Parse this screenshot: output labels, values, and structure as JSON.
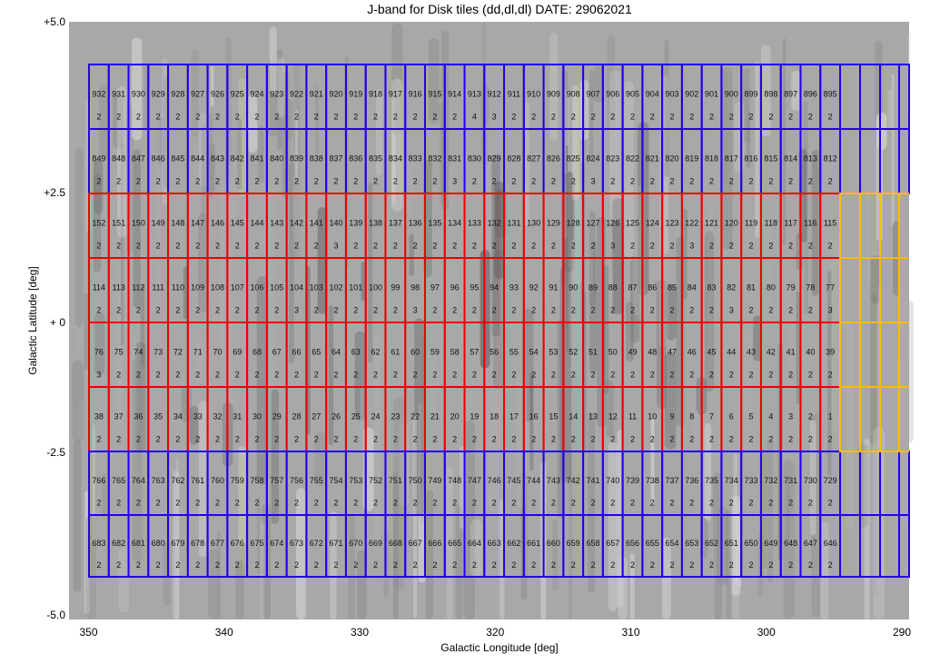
{
  "chart_data": {
    "type": "table",
    "title": "J-band for Disk tiles (dd,dl,dl) DATE: 29062021",
    "xlabel": "Galactic Longitude [deg]",
    "ylabel": "Galactic Latitude [deg]",
    "xticks": [
      "350",
      "340",
      "330",
      "320",
      "310",
      "300",
      "290"
    ],
    "yticks": [
      "+5.0",
      "+2.5",
      "+ 0",
      "-2.5",
      "-5.0"
    ],
    "xlim": [
      351.5,
      289.5
    ],
    "ylim": [
      -5.0,
      5.0
    ],
    "colors": {
      "blue_tiles": "#2200ee",
      "red_tiles": "#ee0000",
      "yellow_tiles": "#ffbb00",
      "background": "#a8a8a8"
    },
    "rows": [
      {
        "group": "blue",
        "ids": [
          932,
          931,
          930,
          929,
          928,
          927,
          926,
          925,
          924,
          923,
          922,
          921,
          920,
          919,
          918,
          917,
          916,
          915,
          914,
          913,
          912,
          911,
          910,
          909,
          908,
          907,
          906,
          905,
          904,
          903,
          902,
          901,
          900,
          899,
          898,
          897,
          896,
          895
        ],
        "counts": [
          2,
          2,
          2,
          2,
          2,
          2,
          2,
          2,
          2,
          2,
          2,
          2,
          2,
          2,
          2,
          2,
          2,
          2,
          2,
          4,
          3,
          2,
          2,
          2,
          2,
          2,
          2,
          2,
          2,
          2,
          2,
          2,
          2,
          2,
          2,
          2,
          2,
          2
        ]
      },
      {
        "group": "blue",
        "ids": [
          849,
          848,
          847,
          846,
          845,
          844,
          843,
          842,
          841,
          840,
          839,
          838,
          837,
          836,
          835,
          834,
          833,
          832,
          831,
          830,
          829,
          828,
          827,
          826,
          825,
          824,
          823,
          822,
          821,
          820,
          819,
          818,
          817,
          816,
          815,
          814,
          813,
          812
        ],
        "counts": [
          2,
          2,
          2,
          2,
          2,
          2,
          2,
          2,
          2,
          2,
          2,
          2,
          2,
          2,
          2,
          2,
          2,
          2,
          3,
          2,
          2,
          2,
          2,
          2,
          2,
          3,
          2,
          2,
          2,
          2,
          2,
          2,
          2,
          2,
          2,
          2,
          2,
          2
        ]
      },
      {
        "group": "red",
        "ids": [
          152,
          151,
          150,
          149,
          148,
          147,
          146,
          145,
          144,
          143,
          142,
          141,
          140,
          139,
          138,
          137,
          136,
          135,
          134,
          133,
          132,
          131,
          130,
          129,
          128,
          127,
          126,
          125,
          124,
          123,
          122,
          121,
          120,
          119,
          118,
          117,
          116,
          115
        ],
        "counts": [
          2,
          2,
          2,
          2,
          2,
          2,
          2,
          2,
          2,
          2,
          2,
          2,
          3,
          2,
          2,
          2,
          2,
          2,
          2,
          2,
          2,
          2,
          2,
          2,
          2,
          2,
          3,
          2,
          2,
          2,
          3,
          2,
          2,
          2,
          2,
          2,
          2,
          2
        ]
      },
      {
        "group": "red",
        "ids": [
          114,
          113,
          112,
          111,
          110,
          109,
          108,
          107,
          106,
          105,
          104,
          103,
          102,
          101,
          100,
          99,
          98,
          97,
          96,
          95,
          94,
          93,
          92,
          91,
          90,
          89,
          88,
          87,
          86,
          85,
          84,
          83,
          82,
          81,
          80,
          79,
          78,
          77
        ],
        "counts": [
          2,
          2,
          2,
          2,
          2,
          2,
          2,
          2,
          2,
          2,
          3,
          2,
          2,
          2,
          2,
          2,
          3,
          2,
          2,
          2,
          2,
          2,
          2,
          2,
          2,
          2,
          2,
          2,
          2,
          2,
          2,
          2,
          3,
          2,
          2,
          2,
          2,
          3
        ]
      },
      {
        "group": "red",
        "ids": [
          76,
          75,
          74,
          73,
          72,
          71,
          70,
          69,
          68,
          67,
          66,
          65,
          64,
          63,
          62,
          61,
          60,
          59,
          58,
          57,
          56,
          55,
          54,
          53,
          52,
          51,
          50,
          49,
          48,
          47,
          46,
          45,
          44,
          43,
          42,
          41,
          40,
          39
        ],
        "counts": [
          3,
          2,
          2,
          2,
          2,
          2,
          2,
          2,
          2,
          2,
          2,
          2,
          2,
          2,
          2,
          2,
          2,
          2,
          2,
          2,
          2,
          2,
          2,
          2,
          2,
          2,
          2,
          2,
          2,
          2,
          2,
          2,
          2,
          2,
          2,
          2,
          2,
          2
        ]
      },
      {
        "group": "red",
        "ids": [
          38,
          37,
          36,
          35,
          34,
          33,
          32,
          31,
          30,
          29,
          28,
          27,
          26,
          25,
          24,
          23,
          22,
          21,
          20,
          19,
          18,
          17,
          16,
          15,
          14,
          13,
          12,
          11,
          10,
          9,
          8,
          7,
          6,
          5,
          4,
          3,
          2,
          1
        ],
        "counts": [
          2,
          2,
          2,
          2,
          2,
          2,
          2,
          2,
          2,
          2,
          2,
          2,
          2,
          2,
          2,
          2,
          2,
          2,
          2,
          2,
          2,
          2,
          2,
          2,
          2,
          2,
          2,
          2,
          2,
          2,
          2,
          2,
          2,
          2,
          2,
          2,
          2,
          2
        ]
      },
      {
        "group": "blue",
        "ids": [
          766,
          765,
          764,
          763,
          762,
          761,
          760,
          759,
          758,
          757,
          756,
          755,
          754,
          753,
          752,
          751,
          750,
          749,
          748,
          747,
          746,
          745,
          744,
          743,
          742,
          741,
          740,
          739,
          738,
          737,
          736,
          735,
          734,
          733,
          732,
          731,
          730,
          729
        ],
        "counts": [
          2,
          2,
          2,
          2,
          2,
          2,
          2,
          2,
          2,
          2,
          2,
          2,
          2,
          2,
          2,
          2,
          2,
          2,
          2,
          2,
          2,
          2,
          2,
          2,
          2,
          2,
          2,
          2,
          2,
          2,
          2,
          2,
          2,
          2,
          2,
          2,
          2,
          2
        ]
      },
      {
        "group": "blue",
        "ids": [
          683,
          682,
          681,
          680,
          679,
          678,
          677,
          676,
          675,
          674,
          673,
          672,
          671,
          670,
          669,
          668,
          667,
          666,
          665,
          664,
          663,
          662,
          661,
          660,
          659,
          658,
          657,
          656,
          655,
          654,
          653,
          652,
          651,
          650,
          649,
          648,
          647,
          646
        ],
        "counts": [
          2,
          2,
          2,
          2,
          2,
          2,
          2,
          2,
          2,
          2,
          2,
          2,
          2,
          2,
          2,
          2,
          2,
          2,
          2,
          2,
          2,
          2,
          2,
          2,
          2,
          2,
          2,
          2,
          2,
          2,
          2,
          2,
          2,
          2,
          2,
          2,
          2,
          2
        ]
      }
    ]
  }
}
